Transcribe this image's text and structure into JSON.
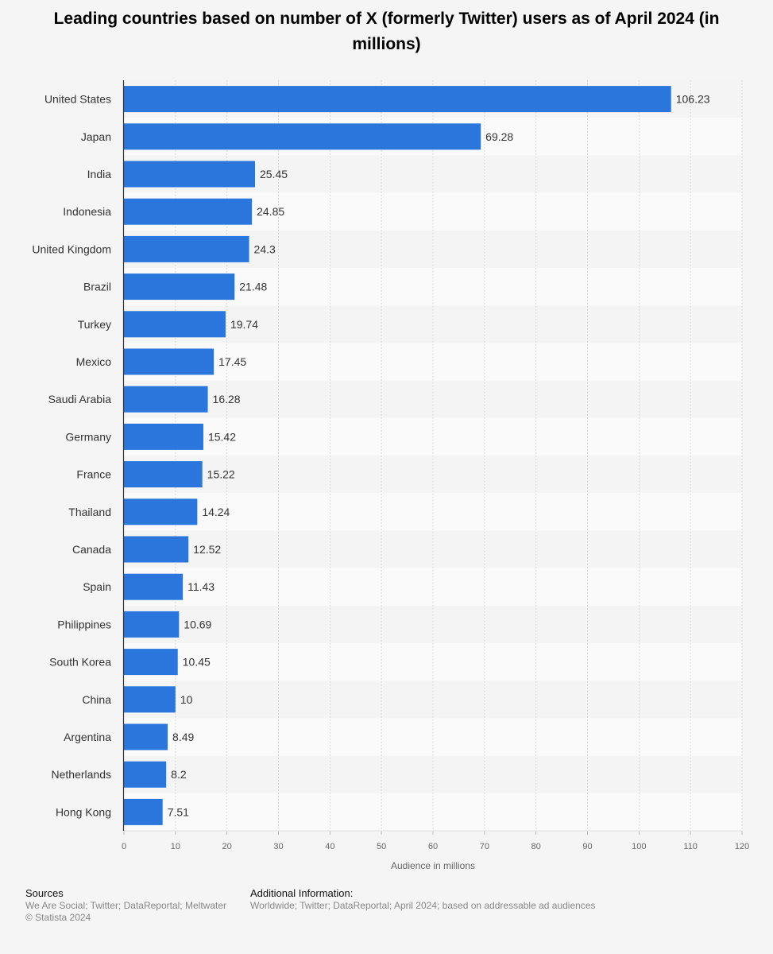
{
  "title": "Leading countries based on number of X (formerly Twitter) users as of April 2024 (in millions)",
  "chart_data": {
    "type": "bar",
    "orientation": "horizontal",
    "title": "Leading countries based on number of X (formerly Twitter) users as of April 2024 (in millions)",
    "categories": [
      "United States",
      "Japan",
      "India",
      "Indonesia",
      "United Kingdom",
      "Brazil",
      "Turkey",
      "Mexico",
      "Saudi Arabia",
      "Germany",
      "France",
      "Thailand",
      "Canada",
      "Spain",
      "Philippines",
      "South Korea",
      "China",
      "Argentina",
      "Netherlands",
      "Hong Kong"
    ],
    "values": [
      106.23,
      69.28,
      25.45,
      24.85,
      24.3,
      21.48,
      19.74,
      17.45,
      16.28,
      15.42,
      15.22,
      14.24,
      12.52,
      11.43,
      10.69,
      10.45,
      10,
      8.49,
      8.2,
      7.51
    ],
    "value_labels": [
      "106.23",
      "69.28",
      "25.45",
      "24.85",
      "24.3",
      "21.48",
      "19.74",
      "17.45",
      "16.28",
      "15.42",
      "15.22",
      "14.24",
      "12.52",
      "11.43",
      "10.69",
      "10.45",
      "10",
      "8.49",
      "8.2",
      "7.51"
    ],
    "xlabel": "Audience in millions",
    "ylabel": "",
    "xlim": [
      0,
      120
    ],
    "xticks": [
      0,
      10,
      20,
      30,
      40,
      50,
      60,
      70,
      80,
      90,
      100,
      110,
      120
    ],
    "grid": true,
    "bar_color": "#2a76dd"
  },
  "footer": {
    "sources_heading": "Sources",
    "sources_text": "We Are Social; Twitter; DataReportal; Meltwater",
    "copyright": "© Statista 2024",
    "additional_heading": "Additional Information:",
    "additional_text": "Worldwide; Twitter; DataReportal; April 2024; based on addressable ad audiences"
  }
}
